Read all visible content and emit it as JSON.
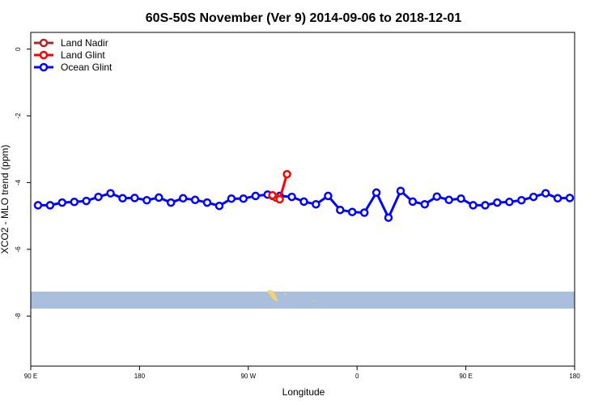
{
  "chart_data": {
    "type": "line",
    "title": "60S-50S November (Ver 9)   2014-09-06 to 2018-12-01",
    "xlabel": "Longitude",
    "ylabel": "XCO2 - MLO trend (ppm)",
    "x_ticks": [
      {
        "value": 90,
        "label": "90 E"
      },
      {
        "value": 180,
        "label": "180"
      },
      {
        "value": 270,
        "label": "90 W"
      },
      {
        "value": 360,
        "label": "0"
      },
      {
        "value": 450,
        "label": "90 E"
      },
      {
        "value": 540,
        "label": "180"
      }
    ],
    "y_ticks": [
      {
        "value": 0,
        "label": "0"
      },
      {
        "value": -2,
        "label": "-2"
      },
      {
        "value": -4,
        "label": "-4"
      },
      {
        "value": -6,
        "label": "-6"
      },
      {
        "value": -8,
        "label": "-8"
      }
    ],
    "xlim": [
      90,
      540
    ],
    "ylim": [
      -9.5,
      0.5
    ],
    "grid": false,
    "legend_position": "top-left",
    "map_inset": {
      "lat_band": "60S-50S",
      "ocean_color": "#a9bfdc",
      "land_color": "#f5d36e"
    },
    "series": [
      {
        "name": "Land Nadir",
        "color": "#a52a2a",
        "points": [
          [
            290.0,
            -4.4
          ],
          [
            293.0,
            -4.45
          ]
        ]
      },
      {
        "name": "Land Glint",
        "color": "#ff0000",
        "points": [
          [
            290.0,
            -4.38
          ],
          [
            296.0,
            -4.5
          ],
          [
            302.0,
            -3.75
          ]
        ]
      },
      {
        "name": "Ocean Glint",
        "color": "#0000ff",
        "points": [
          [
            96,
            -4.68
          ],
          [
            106,
            -4.68
          ],
          [
            116,
            -4.6
          ],
          [
            126,
            -4.58
          ],
          [
            136,
            -4.55
          ],
          [
            146,
            -4.43
          ],
          [
            156,
            -4.32
          ],
          [
            166,
            -4.47
          ],
          [
            176,
            -4.46
          ],
          [
            186,
            -4.53
          ],
          [
            196,
            -4.45
          ],
          [
            206,
            -4.6
          ],
          [
            216,
            -4.47
          ],
          [
            226,
            -4.52
          ],
          [
            236,
            -4.6
          ],
          [
            246,
            -4.7
          ],
          [
            256,
            -4.48
          ],
          [
            266,
            -4.48
          ],
          [
            276,
            -4.4
          ],
          [
            286,
            -4.36
          ],
          [
            296,
            -4.4
          ],
          [
            306,
            -4.43
          ],
          [
            316,
            -4.57
          ],
          [
            326,
            -4.65
          ],
          [
            336,
            -4.4
          ],
          [
            346,
            -4.82
          ],
          [
            356,
            -4.88
          ],
          [
            366,
            -4.9
          ],
          [
            376,
            -4.3
          ],
          [
            386,
            -5.05
          ],
          [
            396,
            -4.25
          ],
          [
            406,
            -4.57
          ],
          [
            416,
            -4.65
          ],
          [
            426,
            -4.42
          ],
          [
            436,
            -4.52
          ],
          [
            446,
            -4.48
          ],
          [
            456,
            -4.68
          ],
          [
            466,
            -4.68
          ],
          [
            476,
            -4.6
          ],
          [
            486,
            -4.58
          ],
          [
            496,
            -4.53
          ],
          [
            506,
            -4.43
          ],
          [
            516,
            -4.32
          ],
          [
            526,
            -4.47
          ],
          [
            536,
            -4.46
          ]
        ]
      }
    ]
  }
}
